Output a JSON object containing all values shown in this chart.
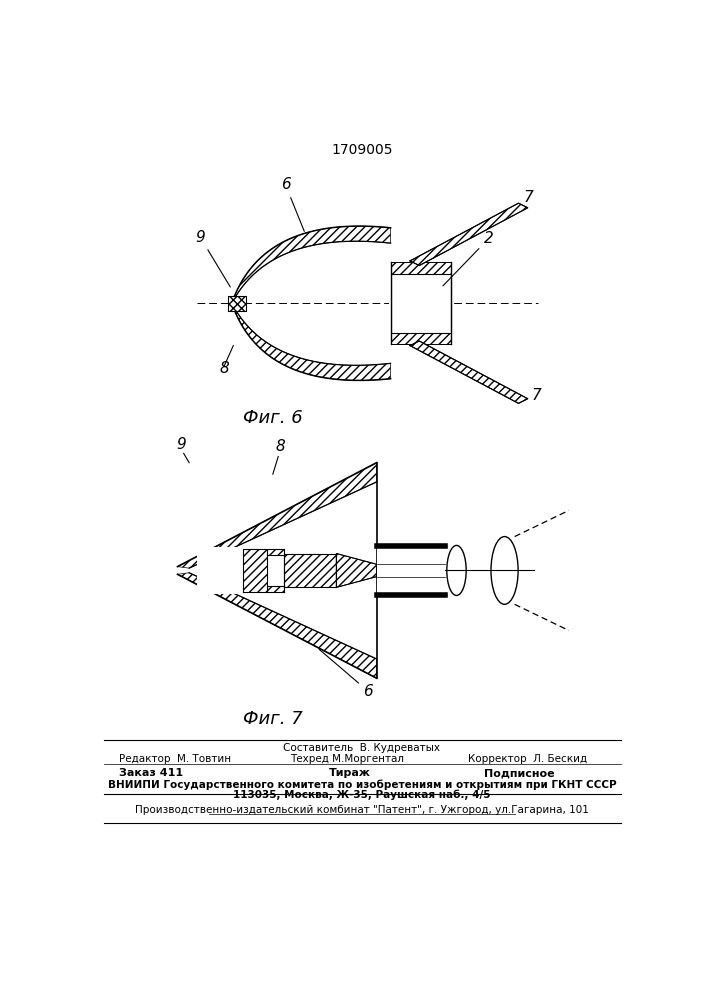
{
  "patent_number": "1709005",
  "fig6_label": "Фиг. 6",
  "fig7_label": "Фиг. 7",
  "bg_color": "#ffffff",
  "line_color": "#000000",
  "footer_line1_center": "Составитель  В. Кудреватых",
  "footer_line2_left": "Редактор  М. Товтин",
  "footer_line2_center": "Техред М.Моргентал",
  "footer_line2_right": "Корректор  Л. Бескид",
  "footer_line3_left": "Заказ 411",
  "footer_line3_center": "Тираж",
  "footer_line3_right": "Подписное",
  "footer_line4": "ВНИИПИ Государственного комитета по изобретениям и открытиям при ГКНТ СССР",
  "footer_line5": "113035, Москва, Ж-35, Раушская наб., 4/5",
  "footer_line6": "Производственно-издательский комбинат \"Патент\", г. Ужгород, ул.Гагарина, 101"
}
